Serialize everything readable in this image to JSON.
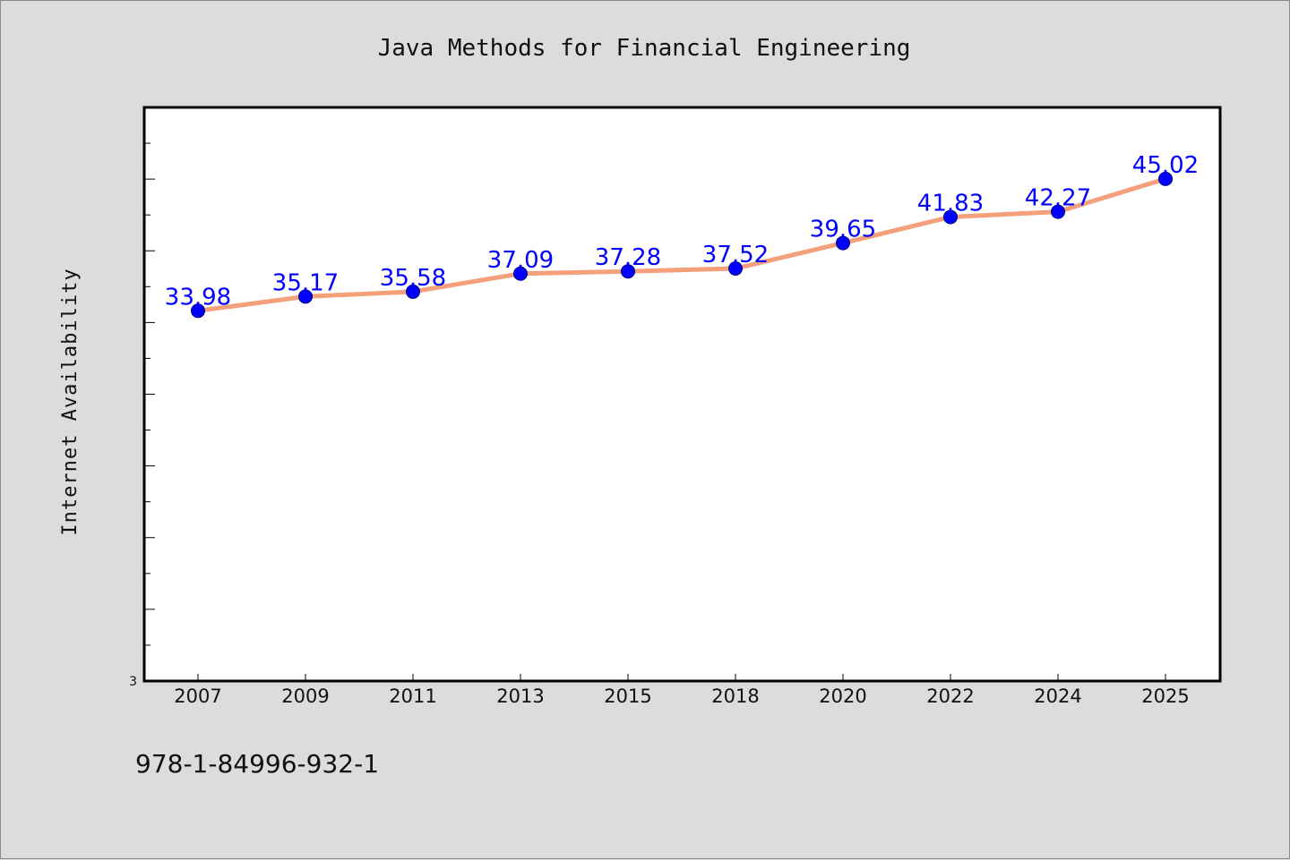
{
  "chart_data": {
    "type": "line",
    "title": "Java Methods for Financial Engineering",
    "ylabel": "Internet Availability",
    "xlabel": "",
    "categories": [
      "2007",
      "2009",
      "2011",
      "2013",
      "2015",
      "2018",
      "2020",
      "2022",
      "2024",
      "2025"
    ],
    "series": [
      {
        "values": [
          33.98,
          35.17,
          35.58,
          37.09,
          37.28,
          37.52,
          39.65,
          41.83,
          42.27,
          45.02
        ],
        "data_labels": [
          "33.98",
          "35.17",
          "35.58",
          "37.09",
          "37.28",
          "37.52",
          "39.65",
          "41.83",
          "42.27",
          "45.02"
        ],
        "line_color": "#f4a07a",
        "marker_color": "#0000ff",
        "label_color": "#0000ff"
      }
    ],
    "ylim": [
      3,
      51
    ],
    "y_tick_labels": [
      "3"
    ],
    "y_minor_tick_step": 3,
    "y_major_tick_step": 6,
    "grid": false,
    "legend": "none",
    "plot_background": "#ffffff",
    "page_background": "#dcdcdc"
  },
  "footnote": "978-1-84996-932-1"
}
